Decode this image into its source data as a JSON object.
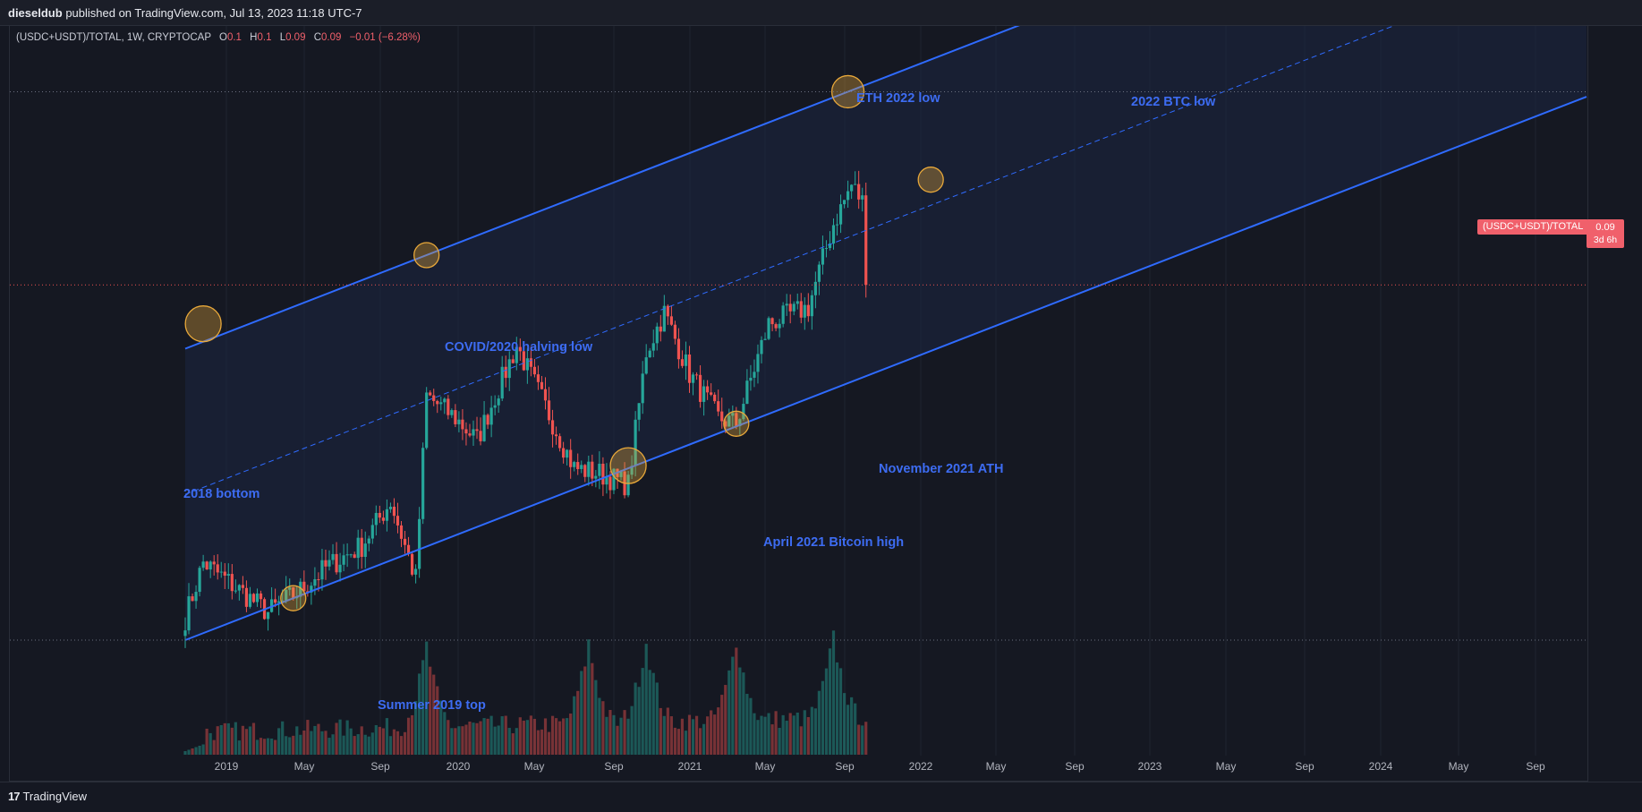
{
  "header": {
    "publisher": "dieseldub",
    "published_on": "published on TradingView.com, Jul 13, 2023 11:18 UTC-7"
  },
  "legend": {
    "symbol": "(USDC+USDT)/TOTAL, 1W, CRYPTOCAP",
    "o_label": "O",
    "o_value": "0.1",
    "h_label": "H",
    "h_value": "0.1",
    "l_label": "L",
    "l_value": "0.09",
    "c_label": "C",
    "c_value": "0.09",
    "change": "−0.01 (−6.28%)"
  },
  "price_axis": {
    "symbol_label": "(USDC+USDT)/TOTAL",
    "last_value": "0.09",
    "countdown": "3d 6h"
  },
  "footer": {
    "brand": "TradingView",
    "brand_mark": "17"
  },
  "colors": {
    "background": "#151822",
    "up": "#26a69a",
    "down": "#ef5350",
    "channel": "#2f6bff",
    "annotation": "#3d6cf2",
    "circle": "#e8a83a"
  },
  "chart_data": {
    "type": "candlestick",
    "title": "(USDC+USDT)/TOTAL, 1W, CRYPTOCAP",
    "x_ticks": [
      "2019",
      "May",
      "Sep",
      "2020",
      "May",
      "Sep",
      "2021",
      "May",
      "Sep",
      "2022",
      "May",
      "Sep",
      "2023",
      "May",
      "Sep",
      "2024",
      "May",
      "Sep"
    ],
    "x_range": [
      "2018-11-19",
      "2024-10-25"
    ],
    "last_close": 0.09,
    "price_path_dates": [
      "2018-12-03",
      "2019-01-07",
      "2019-03-04",
      "2019-05-13",
      "2019-07-15",
      "2019-09-02",
      "2019-11-11",
      "2020-01-06",
      "2020-02-24",
      "2020-03-16",
      "2020-05-11",
      "2020-06-22",
      "2020-08-10",
      "2020-09-07",
      "2020-11-02",
      "2020-12-28",
      "2021-02-15",
      "2021-04-12",
      "2021-05-17",
      "2021-06-21",
      "2021-08-09",
      "2021-10-04",
      "2021-11-08",
      "2022-01-10",
      "2022-03-28",
      "2022-05-16",
      "2022-06-20",
      "2022-08-15",
      "2022-10-10",
      "2022-11-14",
      "2022-12-12",
      "2023-02-13",
      "2023-04-17",
      "2023-06-05",
      "2023-07-10"
    ],
    "price_path_rel": [
      0.04,
      0.14,
      0.1,
      0.05,
      0.09,
      0.13,
      0.17,
      0.25,
      0.11,
      0.44,
      0.4,
      0.36,
      0.47,
      0.53,
      0.42,
      0.31,
      0.3,
      0.28,
      0.52,
      0.59,
      0.48,
      0.4,
      0.39,
      0.57,
      0.6,
      0.75,
      0.82,
      0.74,
      0.72,
      0.76,
      0.78,
      0.7,
      0.67,
      0.69,
      0.64
    ],
    "channel": {
      "upper": [
        [
          "2018-12-03",
          0.525
        ],
        [
          "2022-06-13",
          0.988
        ]
      ],
      "lower": [
        [
          "2018-12-03",
          0.0
        ],
        [
          "2022-06-13",
          0.463
        ]
      ],
      "midline": "dashed"
    },
    "volume_peak_dates": [
      "2020-03-16",
      "2021-01-25",
      "2021-05-17",
      "2021-11-08",
      "2022-05-16",
      "2022-11-14"
    ],
    "annotations": [
      {
        "text": "2018 bottom",
        "date": "2019-01-07",
        "circle": true
      },
      {
        "text": "Summer 2019 top",
        "date": "2019-07-01",
        "circle": true
      },
      {
        "text": "COVID/2020 halving low",
        "date": "2020-03-16",
        "circle": true
      },
      {
        "text": "April 2021 Bitcoin high",
        "date": "2021-04-12",
        "circle": true
      },
      {
        "text": "November 2021 ATH",
        "date": "2021-11-08",
        "circle": true
      },
      {
        "text": "ETH 2022 low",
        "date": "2022-06-13",
        "circle": true
      },
      {
        "text": "2022 BTC low",
        "date": "2022-11-21",
        "circle": true
      }
    ]
  }
}
